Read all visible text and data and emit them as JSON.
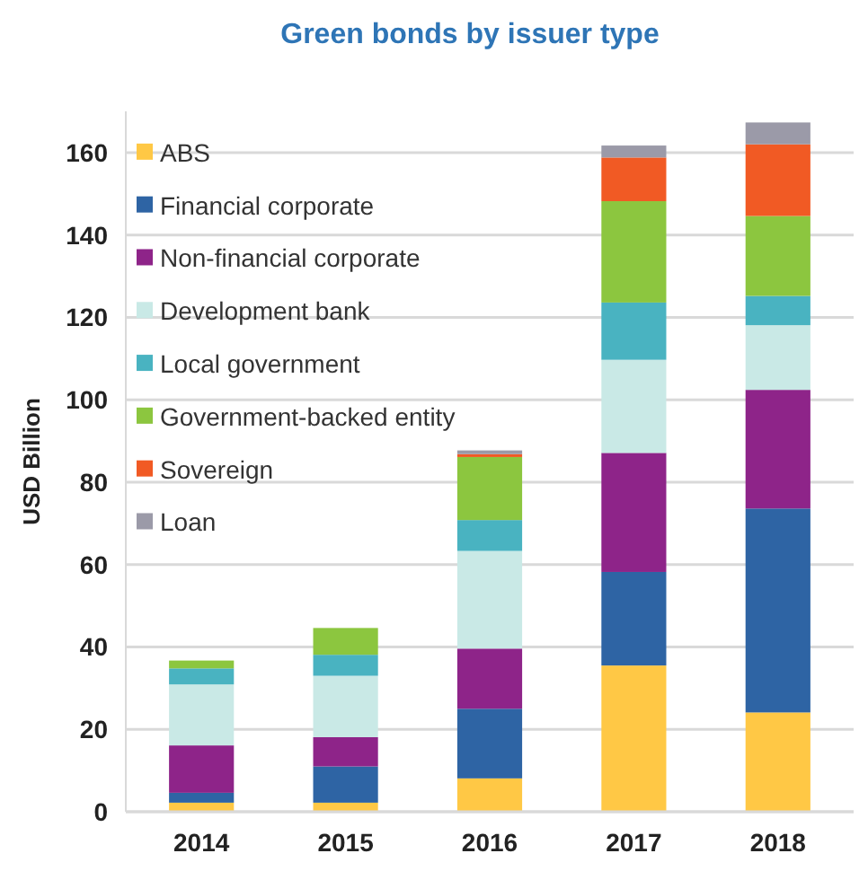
{
  "chart_data": {
    "type": "bar",
    "title": "Green bonds by issuer type",
    "ylabel": "USD Billion",
    "categories": [
      "2014",
      "2015",
      "2016",
      "2017",
      "2018"
    ],
    "stacked": true,
    "ylim": [
      0,
      170
    ],
    "yticks": [
      0,
      20,
      40,
      60,
      80,
      100,
      120,
      140,
      160
    ],
    "grid": "y",
    "legend": "top left",
    "series": [
      {
        "name": "ABS",
        "color": "#ffc845",
        "values": [
          2.2,
          2.2,
          8.1,
          35.5,
          24.1
        ]
      },
      {
        "name": "Financial corporate",
        "color": "#2e64a4",
        "values": [
          2.4,
          8.8,
          16.9,
          22.7,
          49.5
        ]
      },
      {
        "name": "Non-financial corporate",
        "color": "#8e2489",
        "values": [
          11.5,
          7.1,
          14.6,
          28.9,
          28.8
        ]
      },
      {
        "name": "Development bank",
        "color": "#c9e9e6",
        "values": [
          14.8,
          14.9,
          23.7,
          22.6,
          15.7
        ]
      },
      {
        "name": "Local government",
        "color": "#49b3c1",
        "values": [
          3.9,
          5.1,
          7.5,
          13.9,
          7.1
        ]
      },
      {
        "name": "Government-backed entity",
        "color": "#8cc63f",
        "values": [
          1.9,
          6.5,
          15.3,
          24.6,
          19.4
        ]
      },
      {
        "name": "Sovereign",
        "color": "#f15a24",
        "values": [
          0,
          0,
          0.7,
          10.6,
          17.4
        ]
      },
      {
        "name": "Loan",
        "color": "#9b9aa8",
        "values": [
          0,
          0,
          0.9,
          2.9,
          5.3
        ]
      }
    ]
  }
}
